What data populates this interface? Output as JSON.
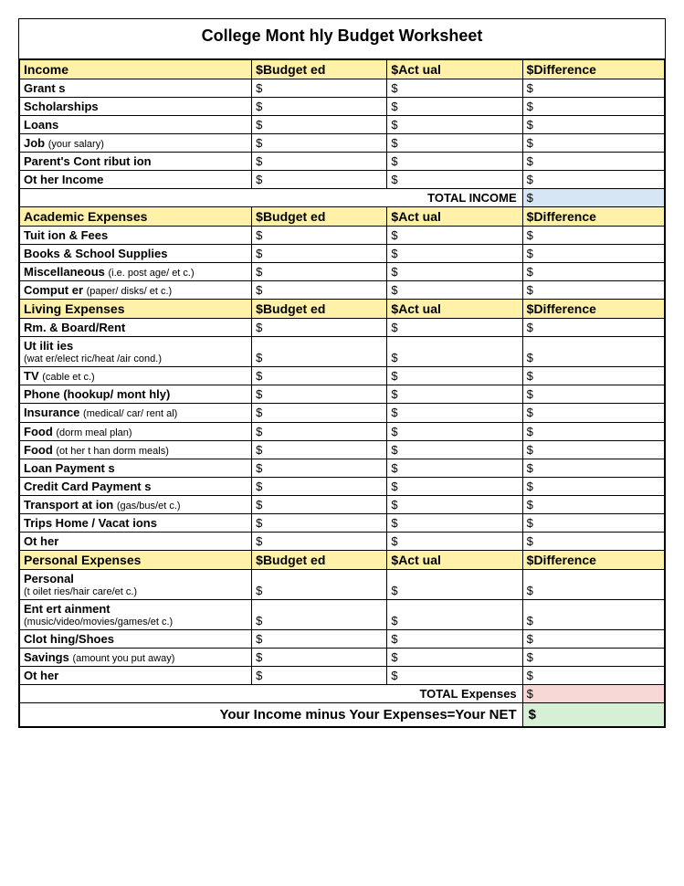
{
  "title": "College Mont hly Budget  Worksheet",
  "columns": {
    "budgeted": "$Budget ed",
    "actual": "$Act ual",
    "difference": "$Difference"
  },
  "currency": "$",
  "colors": {
    "header_bg": "#fff2a8",
    "total_income_bg": "#d7e6f5",
    "total_expenses_bg": "#f8d7d7",
    "net_bg": "#d5f0d5",
    "border": "#000000",
    "page_bg": "#ffffff"
  },
  "sections": [
    {
      "name": "Income",
      "rows": [
        {
          "label": "Grant s"
        },
        {
          "label": "Scholarships"
        },
        {
          "label": "Loans"
        },
        {
          "label": "Job",
          "sub_inline": "(your salary)"
        },
        {
          "label": "Parent's Cont ribut ion"
        },
        {
          "label": "Ot her Income"
        }
      ]
    },
    {
      "name": "Academic Expenses",
      "rows": [
        {
          "label": "Tuit ion & Fees"
        },
        {
          "label": "Books & School Supplies"
        },
        {
          "label": "Miscellaneous",
          "sub_inline": "(i.e. post age/ et c.)"
        },
        {
          "label": "Comput er",
          "sub_inline": "(paper/ disks/ et c.)"
        }
      ]
    },
    {
      "name": "Living Expenses",
      "rows": [
        {
          "label": "Rm. & Board/Rent"
        },
        {
          "label": "Ut ilit ies",
          "sub_block": "(wat er/elect ric/heat /air cond.)"
        },
        {
          "label": "TV",
          "sub_inline": "(cable et c.)"
        },
        {
          "label": "Phone (hookup/ mont hly)"
        },
        {
          "label": "Insurance",
          "sub_inline": "(medical/ car/ rent al)"
        },
        {
          "label": "Food",
          "sub_inline": "(dorm meal plan)"
        },
        {
          "label": "Food",
          "sub_inline": "(ot her t han dorm meals)"
        },
        {
          "label": "Loan Payment s"
        },
        {
          "label": "Credit Card Payment s"
        },
        {
          "label": "Transport at ion",
          "sub_inline": "(gas/bus/et c.)"
        },
        {
          "label": "Trips Home / Vacat ions"
        },
        {
          "label": "Ot her"
        }
      ]
    },
    {
      "name": "Personal Expenses",
      "rows": [
        {
          "label": "Personal",
          "sub_block": "(t oilet ries/hair care/et c.)"
        },
        {
          "label": "Ent ert ainment",
          "sub_block": "(music/video/movies/games/et c.)"
        },
        {
          "label": "Clot hing/Shoes"
        },
        {
          "label": "Savings",
          "sub_inline": "(amount you put away)"
        },
        {
          "label": "Ot her"
        }
      ]
    }
  ],
  "total_income_label": "TOTAL INCOME",
  "total_expenses_label": "TOTAL Expenses",
  "net_label": "Your Income minus Your Expenses=Your NET"
}
